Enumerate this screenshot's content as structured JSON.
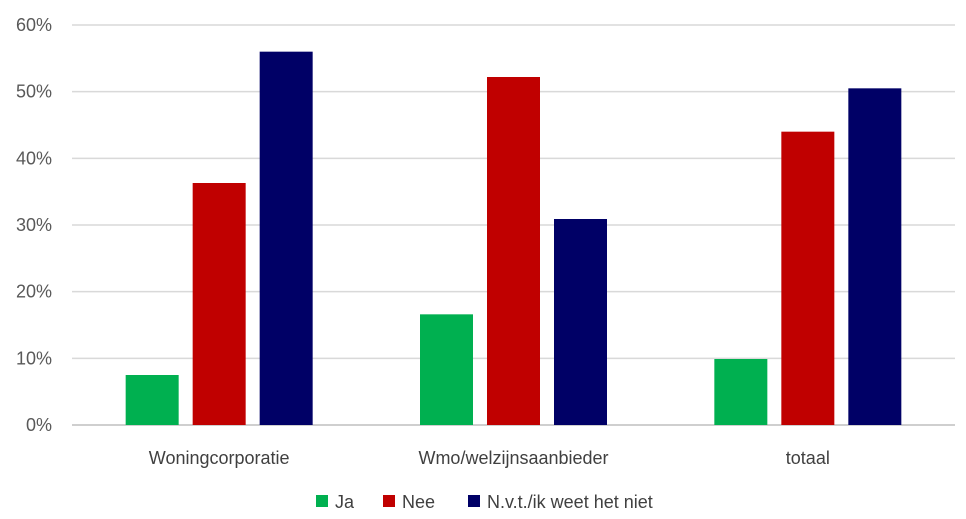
{
  "chart_data": {
    "type": "bar",
    "title": "",
    "xlabel": "",
    "ylabel": "",
    "categories": [
      "Woningcorporatie",
      "Wmo/welzijnsaanbieder",
      "totaal"
    ],
    "series": [
      {
        "name": "Ja",
        "color": "#00b050",
        "values": [
          7.5,
          16.6,
          9.9
        ]
      },
      {
        "name": "Nee",
        "color": "#c00000",
        "values": [
          36.3,
          52.2,
          44.0
        ]
      },
      {
        "name": "N.v.t./ik weet het niet",
        "color": "#000066",
        "values": [
          56.0,
          30.9,
          50.5
        ]
      }
    ],
    "ylim": [
      0,
      60
    ],
    "yticks": [
      "0%",
      "10%",
      "20%",
      "30%",
      "40%",
      "50%",
      "60%"
    ],
    "grid": true,
    "legend_position": "bottom"
  }
}
